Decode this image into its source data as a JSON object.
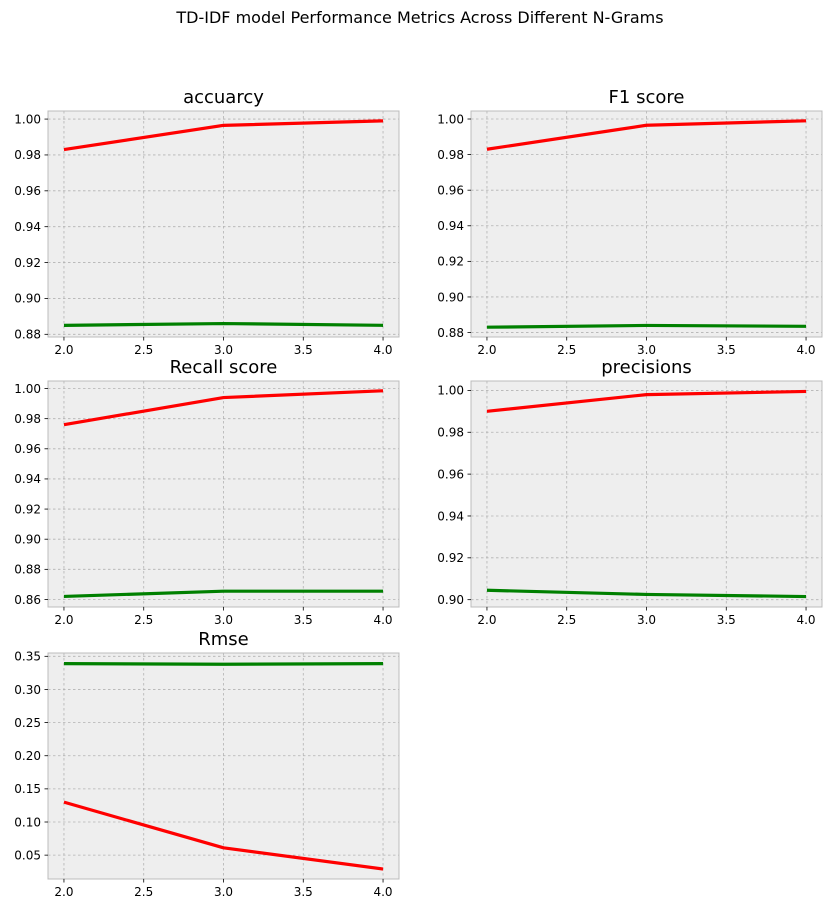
{
  "figure": {
    "title": "TD-IDF model Performance Metrics Across Different N-Grams"
  },
  "colors": {
    "series_a": "#ff0000",
    "series_b": "#008000",
    "axes_bg": "#eeeeee",
    "grid": "#b2b2b2",
    "frame": "#bcbcbc"
  },
  "chart_data": [
    {
      "type": "line",
      "title": "accuarcy",
      "x": [
        2.0,
        3.0,
        4.0
      ],
      "xlim": [
        1.9,
        4.1
      ],
      "xticks": [
        2.0,
        2.5,
        3.0,
        3.5,
        4.0
      ],
      "xtick_labels": [
        "2.0",
        "2.5",
        "3.0",
        "3.5",
        "4.0"
      ],
      "ylim": [
        0.8785,
        1.0045
      ],
      "yticks": [
        0.88,
        0.9,
        0.92,
        0.94,
        0.96,
        0.98,
        1.0
      ],
      "ytick_labels": [
        "0.88",
        "0.90",
        "0.92",
        "0.94",
        "0.96",
        "0.98",
        "1.00"
      ],
      "grid": true,
      "series": [
        {
          "color": "#ff0000",
          "values": [
            0.983,
            0.9965,
            0.999
          ]
        },
        {
          "color": "#008000",
          "values": [
            0.885,
            0.886,
            0.885
          ]
        }
      ]
    },
    {
      "type": "line",
      "title": "F1 score",
      "x": [
        2.0,
        3.0,
        4.0
      ],
      "xlim": [
        1.9,
        4.1
      ],
      "xticks": [
        2.0,
        2.5,
        3.0,
        3.5,
        4.0
      ],
      "xtick_labels": [
        "2.0",
        "2.5",
        "3.0",
        "3.5",
        "4.0"
      ],
      "ylim": [
        0.8775,
        1.0045
      ],
      "yticks": [
        0.88,
        0.9,
        0.92,
        0.94,
        0.96,
        0.98,
        1.0
      ],
      "ytick_labels": [
        "0.88",
        "0.90",
        "0.92",
        "0.94",
        "0.96",
        "0.98",
        "1.00"
      ],
      "grid": true,
      "series": [
        {
          "color": "#ff0000",
          "values": [
            0.983,
            0.9965,
            0.999
          ]
        },
        {
          "color": "#008000",
          "values": [
            0.883,
            0.884,
            0.8835
          ]
        }
      ]
    },
    {
      "type": "line",
      "title": "Recall score",
      "x": [
        2.0,
        3.0,
        4.0
      ],
      "xlim": [
        1.9,
        4.1
      ],
      "xticks": [
        2.0,
        2.5,
        3.0,
        3.5,
        4.0
      ],
      "xtick_labels": [
        "2.0",
        "2.5",
        "3.0",
        "3.5",
        "4.0"
      ],
      "ylim": [
        0.855,
        1.005
      ],
      "yticks": [
        0.86,
        0.88,
        0.9,
        0.92,
        0.94,
        0.96,
        0.98,
        1.0
      ],
      "ytick_labels": [
        "0.86",
        "0.88",
        "0.90",
        "0.92",
        "0.94",
        "0.96",
        "0.98",
        "1.00"
      ],
      "grid": true,
      "series": [
        {
          "color": "#ff0000",
          "values": [
            0.976,
            0.994,
            0.9985
          ]
        },
        {
          "color": "#008000",
          "values": [
            0.862,
            0.8655,
            0.8655
          ]
        }
      ]
    },
    {
      "type": "line",
      "title": "precisions",
      "x": [
        2.0,
        3.0,
        4.0
      ],
      "xlim": [
        1.9,
        4.1
      ],
      "xticks": [
        2.0,
        2.5,
        3.0,
        3.5,
        4.0
      ],
      "xtick_labels": [
        "2.0",
        "2.5",
        "3.0",
        "3.5",
        "4.0"
      ],
      "ylim": [
        0.8965,
        1.0045
      ],
      "yticks": [
        0.9,
        0.92,
        0.94,
        0.96,
        0.98,
        1.0
      ],
      "ytick_labels": [
        "0.90",
        "0.92",
        "0.94",
        "0.96",
        "0.98",
        "1.00"
      ],
      "grid": true,
      "series": [
        {
          "color": "#ff0000",
          "values": [
            0.99,
            0.998,
            0.9995
          ]
        },
        {
          "color": "#008000",
          "values": [
            0.9045,
            0.9025,
            0.9015
          ]
        }
      ]
    },
    {
      "type": "line",
      "title": "Rmse",
      "x": [
        2.0,
        3.0,
        4.0
      ],
      "xlim": [
        1.9,
        4.1
      ],
      "xticks": [
        2.0,
        2.5,
        3.0,
        3.5,
        4.0
      ],
      "xtick_labels": [
        "2.0",
        "2.5",
        "3.0",
        "3.5",
        "4.0"
      ],
      "ylim": [
        0.014,
        0.355
      ],
      "yticks": [
        0.05,
        0.1,
        0.15,
        0.2,
        0.25,
        0.3,
        0.35
      ],
      "ytick_labels": [
        "0.05",
        "0.10",
        "0.15",
        "0.20",
        "0.25",
        "0.30",
        "0.35"
      ],
      "grid": true,
      "series": [
        {
          "color": "#008000",
          "values": [
            0.339,
            0.338,
            0.339
          ]
        },
        {
          "color": "#ff0000",
          "values": [
            0.13,
            0.061,
            0.029
          ]
        }
      ]
    }
  ]
}
